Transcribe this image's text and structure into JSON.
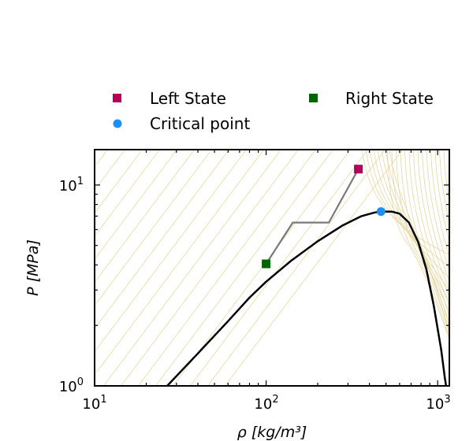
{
  "chart_data": {
    "type": "line",
    "xlabel": "ρ [kg/m³]",
    "ylabel": "P [MPa]",
    "xscale": "log",
    "yscale": "log",
    "xlim": [
      10,
      1170
    ],
    "ylim": [
      1,
      15
    ],
    "x_ticks": [
      {
        "value": 10,
        "base": "10",
        "exp": "1"
      },
      {
        "value": 100,
        "base": "10",
        "exp": "2"
      },
      {
        "value": 1000,
        "base": "10",
        "exp": "3"
      }
    ],
    "y_ticks": [
      {
        "value": 1,
        "base": "10",
        "exp": "0"
      },
      {
        "value": 10,
        "base": "10",
        "exp": "1"
      }
    ],
    "legend_placement": "above",
    "legend": [
      {
        "label": "Left State",
        "marker": "square",
        "color": "#b5005b"
      },
      {
        "label": "Right State",
        "marker": "square",
        "color": "#006400"
      },
      {
        "label": "Critical point",
        "marker": "circle",
        "color": "#1f8ef1"
      }
    ],
    "series": [
      {
        "role": "saturation-curve",
        "color": "#000000",
        "points": [
          [
            26.5,
            1.0
          ],
          [
            40,
            1.45
          ],
          [
            60,
            2.1
          ],
          [
            80,
            2.75
          ],
          [
            100,
            3.3
          ],
          [
            140,
            4.2
          ],
          [
            200,
            5.25
          ],
          [
            280,
            6.3
          ],
          [
            360,
            7.0
          ],
          [
            430,
            7.3
          ],
          [
            468,
            7.38
          ],
          [
            540,
            7.37
          ],
          [
            600,
            7.2
          ],
          [
            680,
            6.5
          ],
          [
            770,
            5.2
          ],
          [
            860,
            3.8
          ],
          [
            950,
            2.5
          ],
          [
            1050,
            1.5
          ],
          [
            1100,
            1.1
          ],
          [
            1120,
            1.0
          ]
        ]
      },
      {
        "role": "solution-path",
        "color": "#7a7a7a",
        "points": [
          [
            100,
            4.05
          ],
          [
            143,
            6.5
          ],
          [
            232,
            6.5
          ],
          [
            345,
            12.0
          ]
        ]
      }
    ],
    "points": [
      {
        "role": "left-state",
        "x": 345,
        "y": 12.0,
        "marker": "square",
        "color": "#b5005b"
      },
      {
        "role": "right-state",
        "x": 100,
        "y": 4.05,
        "marker": "square",
        "color": "#006400"
      },
      {
        "role": "critical-point",
        "x": 467.6,
        "y": 7.38,
        "marker": "circle",
        "color": "#1f8ef1"
      }
    ],
    "isotherm_color": "#e6d7a2",
    "grid": false
  }
}
